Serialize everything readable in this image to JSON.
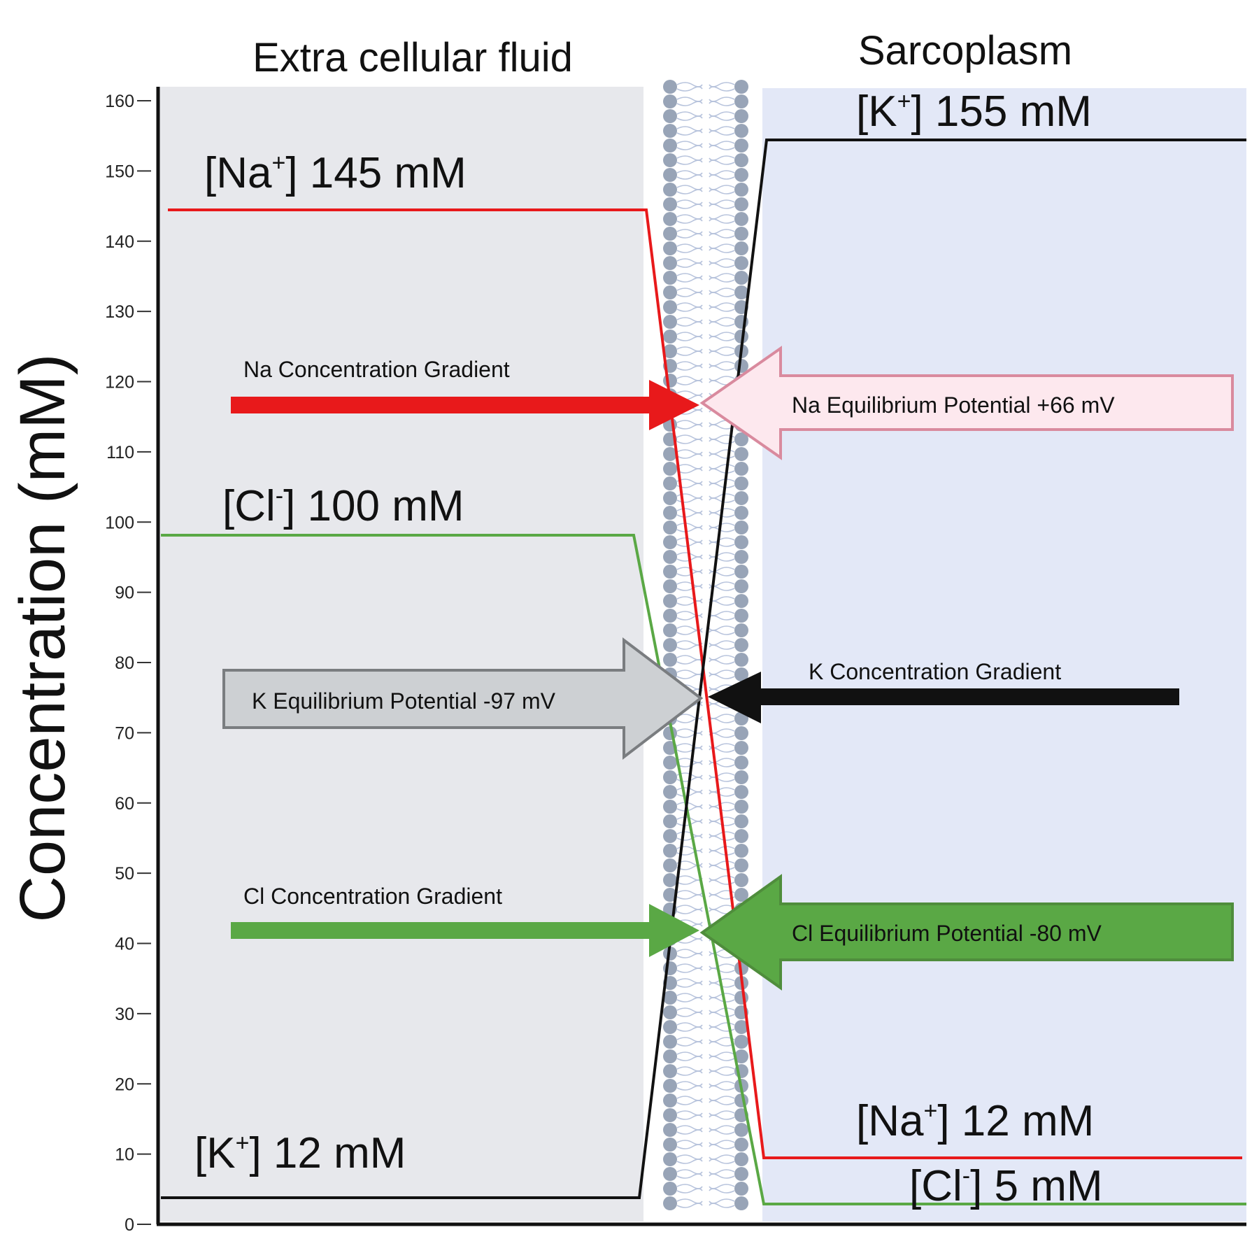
{
  "headers": {
    "left": "Extra cellular fluid",
    "right": "Sarcoplasm"
  },
  "y_axis": {
    "label": "Concentration (mM)",
    "ticks": [
      "0",
      "10",
      "20",
      "30",
      "40",
      "50",
      "60",
      "70",
      "80",
      "90",
      "100",
      "110",
      "120",
      "130",
      "140",
      "150",
      "160"
    ]
  },
  "ion_labels": {
    "na_out": {
      "pre": "[Na",
      "sup": "+",
      "post": "] 145 mM"
    },
    "cl_out": {
      "pre": "[Cl",
      "sup": "-",
      "post": "] 100 mM"
    },
    "k_out": {
      "pre": "[K",
      "sup": "+",
      "post": "] 12 mM"
    },
    "k_in": {
      "pre": "[K",
      "sup": "+",
      "post": "] 155 mM"
    },
    "na_in": {
      "pre": "[Na",
      "sup": "+",
      "post": "] 12 mM"
    },
    "cl_in": {
      "pre": "[Cl",
      "sup": "-",
      "post": "] 5 mM"
    }
  },
  "arrows": {
    "na_gradient": "Na Concentration Gradient",
    "na_equilibrium": "Na Equilibrium Potential  +66 mV",
    "k_equilibrium": "K Equilibrium Potential  -97 mV",
    "k_gradient": "K Concentration Gradient",
    "cl_gradient": "Cl Concentration Gradient",
    "cl_equilibrium": "Cl Equilibrium Potential  -80 mV"
  },
  "colors": {
    "na": "#e8191b",
    "cl": "#5aa845",
    "k": "#111111",
    "na_eq_fill": "#fde8ee",
    "na_eq_stroke": "#d98a9e",
    "k_eq_fill": "#cdd0d3",
    "k_eq_stroke": "#7a7d80",
    "cl_eq_fill": "#5aa845",
    "cl_eq_stroke": "#4f8d3c",
    "extracellular_bg": "#e7e8ec",
    "sarcoplasm_bg": "#e3e8f7",
    "lipid_head": "#98a4b7",
    "lipid_tail": "#b7c3dc"
  },
  "chart_data": {
    "type": "line",
    "ylabel": "Concentration (mM)",
    "ylim": [
      0,
      160
    ],
    "series": [
      {
        "name": "Na+",
        "values": [
          145,
          12
        ]
      },
      {
        "name": "Cl-",
        "values": [
          100,
          5
        ]
      },
      {
        "name": "K+",
        "values": [
          12,
          155
        ]
      }
    ],
    "categories": [
      "Extra cellular fluid",
      "Sarcoplasm"
    ]
  }
}
